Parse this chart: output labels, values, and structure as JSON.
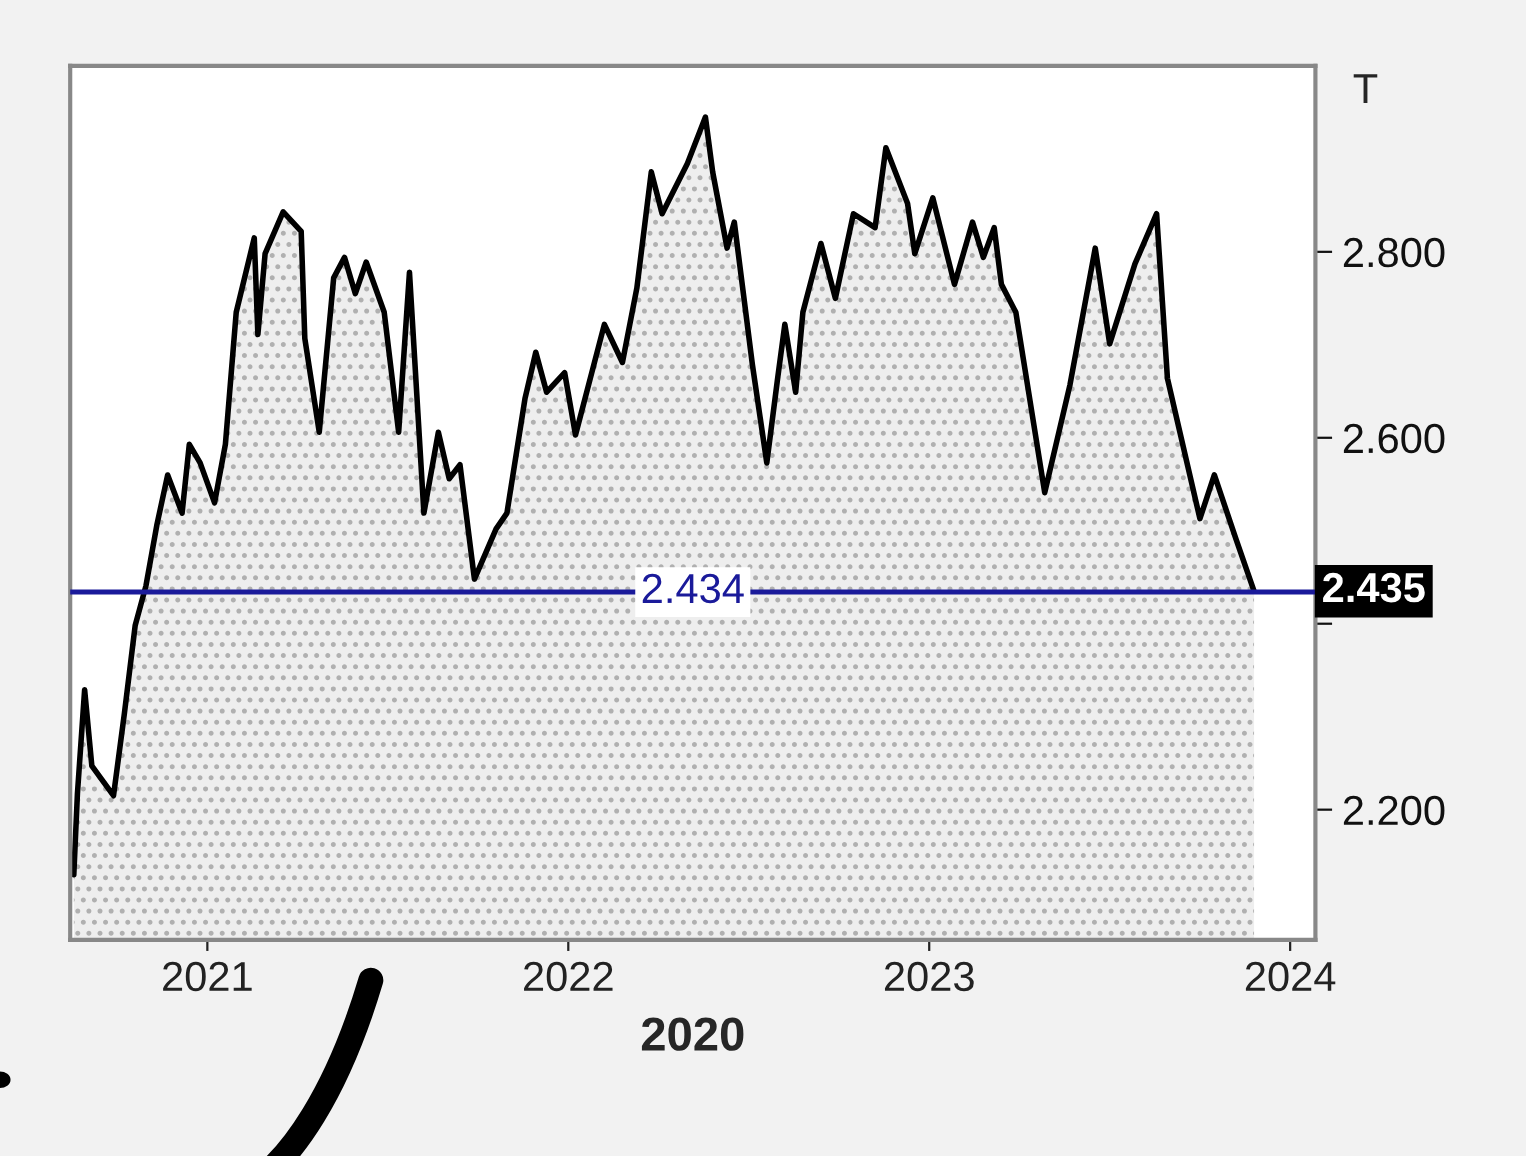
{
  "chart_data": {
    "type": "area",
    "xlabel": "2020",
    "ylabel": "T",
    "x": [
      2020.63,
      2020.64,
      2020.66,
      2020.68,
      2020.74,
      2020.77,
      2020.8,
      2020.83,
      2020.86,
      2020.89,
      2020.93,
      2020.95,
      2020.98,
      2021.02,
      2021.05,
      2021.08,
      2021.13,
      2021.14,
      2021.16,
      2021.21,
      2021.26,
      2021.27,
      2021.31,
      2021.35,
      2021.38,
      2021.41,
      2021.44,
      2021.49,
      2021.53,
      2021.56,
      2021.6,
      2021.64,
      2021.67,
      2021.7,
      2021.74,
      2021.8,
      2021.83,
      2021.88,
      2021.91,
      2021.94,
      2021.99,
      2022.02,
      2022.1,
      2022.15,
      2022.19,
      2022.23,
      2022.26,
      2022.33,
      2022.38,
      2022.4,
      2022.44,
      2022.46,
      2022.51,
      2022.55,
      2022.58,
      2022.6,
      2022.63,
      2022.65,
      2022.7,
      2022.74,
      2022.79,
      2022.85,
      2022.88,
      2022.94,
      2022.96,
      2023.01,
      2023.07,
      2023.12,
      2023.15,
      2023.18,
      2023.2,
      2023.24,
      2023.32,
      2023.39,
      2023.46,
      2023.5,
      2023.57,
      2023.63,
      2023.66,
      2023.75,
      2023.79,
      2023.85,
      2023.9
    ],
    "series": [
      {
        "color": "#000000",
        "values": [
          2.13,
          2.217,
          2.329,
          2.247,
          2.215,
          2.303,
          2.398,
          2.441,
          2.506,
          2.56,
          2.519,
          2.593,
          2.573,
          2.53,
          2.593,
          2.735,
          2.815,
          2.711,
          2.798,
          2.843,
          2.822,
          2.707,
          2.606,
          2.772,
          2.794,
          2.755,
          2.789,
          2.735,
          2.606,
          2.778,
          2.519,
          2.606,
          2.556,
          2.571,
          2.448,
          2.502,
          2.519,
          2.642,
          2.692,
          2.649,
          2.67,
          2.603,
          2.722,
          2.681,
          2.761,
          2.886,
          2.841,
          2.895,
          2.945,
          2.886,
          2.804,
          2.832,
          2.679,
          2.573,
          2.664,
          2.722,
          2.649,
          2.735,
          2.809,
          2.75,
          2.841,
          2.826,
          2.912,
          2.852,
          2.798,
          2.858,
          2.765,
          2.832,
          2.794,
          2.826,
          2.765,
          2.735,
          2.541,
          2.657,
          2.804,
          2.701,
          2.787,
          2.841,
          2.664,
          2.513,
          2.56,
          2.491,
          2.435
        ]
      }
    ],
    "xlim": [
      2020.62,
      2024.07
    ],
    "xticks": [
      2021,
      2022,
      2023,
      2024
    ],
    "ylim": [
      2.06,
      3.0
    ],
    "yticks": [
      {
        "value": 2.2,
        "label": "2.200"
      },
      {
        "value": 2.4,
        "label": null
      },
      {
        "value": 2.6,
        "label": "2.600"
      },
      {
        "value": 2.8,
        "label": "2.800"
      }
    ],
    "ref_lines": [
      {
        "axis": "y",
        "value": 2.434,
        "label": "2.434",
        "color": "#1a1a9a"
      }
    ],
    "annotations": [
      "2.435"
    ],
    "grid": false,
    "legend": false
  }
}
